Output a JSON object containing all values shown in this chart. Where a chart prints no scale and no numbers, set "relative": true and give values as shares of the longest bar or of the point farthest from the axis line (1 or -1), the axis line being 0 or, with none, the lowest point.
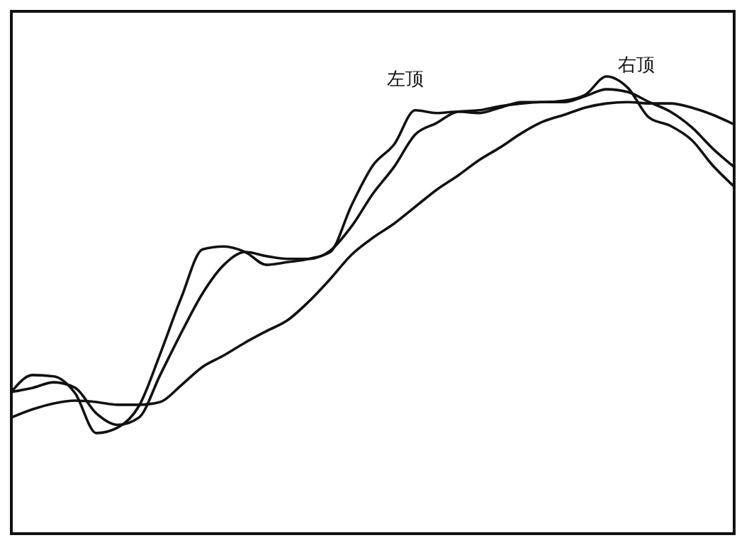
{
  "chart_data": {
    "type": "line",
    "relative": true,
    "marker": "none",
    "line_style": "solid",
    "categories": [
      null,
      null,
      null,
      null,
      null,
      null,
      null,
      null,
      null,
      null,
      null,
      null,
      null,
      null,
      null,
      null,
      null,
      null,
      null,
      null,
      null,
      null,
      null,
      null,
      null,
      null,
      null,
      null,
      null,
      null,
      null,
      null,
      null,
      null,
      null
    ],
    "series": [
      {
        "color": "#111111",
        "values": [
          0.31,
          0.347,
          0.344,
          0.307,
          0.22,
          0.232,
          0.279,
          0.393,
          0.517,
          0.622,
          0.628,
          0.616,
          0.588,
          0.594,
          0.601,
          0.616,
          0.718,
          0.805,
          0.851,
          0.926,
          0.92,
          0.923,
          0.92,
          0.932,
          0.944,
          0.944,
          0.947,
          0.96,
          1.0,
          0.975,
          0.91,
          0.892,
          0.861,
          0.805,
          0.759
        ]
      },
      {
        "color": "#111111",
        "values": [
          0.31,
          0.319,
          0.331,
          0.319,
          0.263,
          0.238,
          0.254,
          0.347,
          0.44,
          0.526,
          0.588,
          0.616,
          0.607,
          0.601,
          0.601,
          0.619,
          0.672,
          0.743,
          0.802,
          0.873,
          0.898,
          0.923,
          0.926,
          0.935,
          0.941,
          0.944,
          0.944,
          0.957,
          0.972,
          0.966,
          0.944,
          0.923,
          0.889,
          0.842,
          0.802
        ]
      },
      {
        "color": "#111111",
        "values": [
          0.254,
          0.272,
          0.285,
          0.291,
          0.288,
          0.282,
          0.282,
          0.288,
          0.325,
          0.365,
          0.39,
          0.418,
          0.443,
          0.467,
          0.508,
          0.557,
          0.61,
          0.647,
          0.678,
          0.715,
          0.752,
          0.783,
          0.817,
          0.845,
          0.876,
          0.901,
          0.916,
          0.932,
          0.941,
          0.944,
          0.941,
          0.941,
          0.932,
          0.916,
          0.895
        ]
      }
    ],
    "annotations": [
      "左顶",
      "右顶"
    ]
  }
}
